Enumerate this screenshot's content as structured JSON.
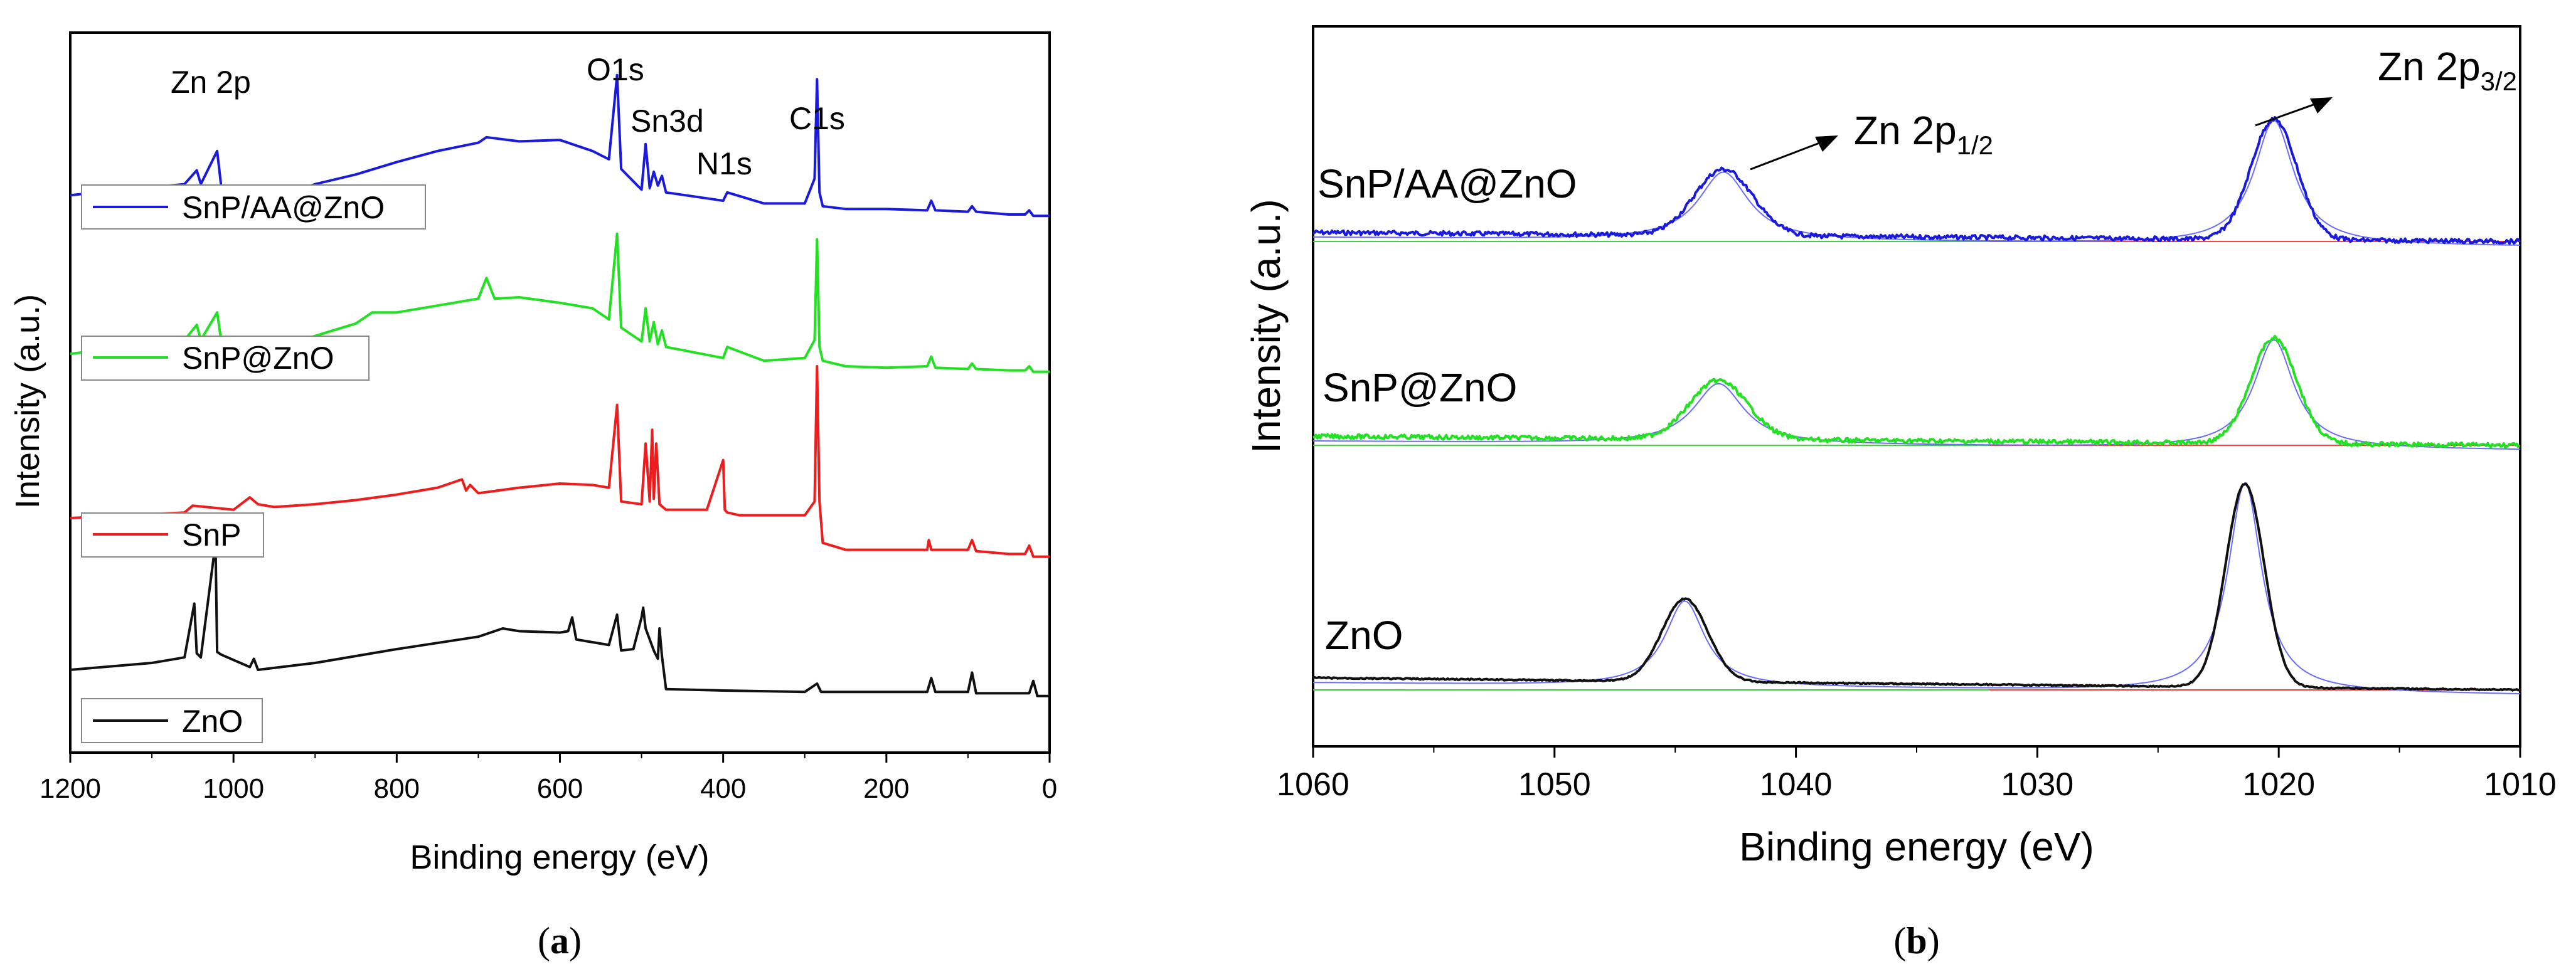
{
  "figure": {
    "panel_a_caption": "(a)",
    "panel_b_caption": "(b)",
    "panel_a_caption_letter": "a",
    "panel_b_caption_letter": "b"
  },
  "colors": {
    "blue": "#1a1adf",
    "green": "#22e022",
    "red": "#ee1c1c",
    "black": "#111111",
    "fit": "#6b6bff",
    "baseline_red": "#ff4040",
    "baseline_green": "#40d040"
  },
  "chart_data": [
    {
      "id": "a",
      "type": "line",
      "title": "",
      "xlabel": "Binding energy (eV)",
      "ylabel": "Intensity (a.u.)",
      "xlim": [
        1200,
        0
      ],
      "x_reversed": true,
      "xticks": [
        1200,
        1000,
        800,
        600,
        400,
        200,
        0
      ],
      "grid": false,
      "legend_entries": [
        "SnP/AA@ZnO",
        "SnP@ZnO",
        "SnP",
        "ZnO"
      ],
      "annotations": [
        "Zn 2p",
        "O1s",
        "Sn3d",
        "N1s",
        "C1s"
      ],
      "series": [
        {
          "name": "SnP/AA@ZnO",
          "color": "blue",
          "offset": 3.0,
          "x": [
            1200,
            1060,
            1045,
            1040,
            1020,
            1015,
            975,
            965,
            900,
            850,
            800,
            750,
            700,
            690,
            650,
            600,
            560,
            540,
            530,
            525,
            500,
            495,
            490,
            485,
            480,
            475,
            470,
            400,
            395,
            350,
            300,
            288,
            285,
            282,
            278,
            250,
            200,
            150,
            145,
            140,
            100,
            95,
            90,
            50,
            30,
            25,
            20,
            0
          ],
          "y": [
            0.08,
            0.16,
            0.26,
            0.16,
            0.4,
            0.14,
            0.08,
            0.03,
            0.16,
            0.23,
            0.32,
            0.4,
            0.46,
            0.5,
            0.47,
            0.48,
            0.4,
            0.34,
            0.95,
            0.27,
            0.12,
            0.45,
            0.13,
            0.25,
            0.15,
            0.22,
            0.1,
            0.04,
            0.1,
            0.02,
            0.02,
            0.2,
            0.92,
            0.1,
            0.0,
            -0.02,
            -0.02,
            -0.03,
            0.04,
            -0.03,
            -0.04,
            0.0,
            -0.04,
            -0.06,
            -0.06,
            -0.03,
            -0.07,
            -0.07
          ]
        },
        {
          "name": "SnP@ZnO",
          "color": "green",
          "offset": 2.0,
          "x": [
            1200,
            1060,
            1045,
            1040,
            1020,
            1015,
            975,
            965,
            900,
            850,
            830,
            800,
            750,
            700,
            690,
            680,
            650,
            600,
            560,
            540,
            530,
            525,
            500,
            495,
            490,
            485,
            480,
            475,
            470,
            400,
            395,
            350,
            300,
            288,
            285,
            282,
            278,
            250,
            200,
            150,
            145,
            140,
            100,
            95,
            90,
            50,
            30,
            25,
            20,
            0
          ],
          "y": [
            0.05,
            0.15,
            0.26,
            0.15,
            0.35,
            0.14,
            0.13,
            0.06,
            0.18,
            0.27,
            0.35,
            0.35,
            0.4,
            0.45,
            0.6,
            0.45,
            0.46,
            0.42,
            0.38,
            0.3,
            0.92,
            0.24,
            0.14,
            0.38,
            0.14,
            0.28,
            0.12,
            0.22,
            0.1,
            0.02,
            0.1,
            0.0,
            0.02,
            0.15,
            0.88,
            0.1,
            0.0,
            -0.04,
            -0.05,
            -0.04,
            0.03,
            -0.05,
            -0.06,
            -0.02,
            -0.06,
            -0.07,
            -0.07,
            -0.04,
            -0.08,
            -0.08
          ]
        },
        {
          "name": "SnP",
          "color": "red",
          "offset": 1.0,
          "x": [
            1200,
            1060,
            1050,
            1000,
            980,
            970,
            950,
            900,
            850,
            800,
            750,
            720,
            715,
            710,
            700,
            650,
            600,
            560,
            540,
            530,
            525,
            500,
            495,
            490,
            487,
            485,
            482,
            478,
            470,
            420,
            400,
            398,
            395,
            380,
            350,
            300,
            288,
            285,
            282,
            278,
            250,
            200,
            150,
            148,
            145,
            140,
            100,
            95,
            90,
            50,
            30,
            25,
            20,
            0
          ],
          "y": [
            -0.02,
            0.02,
            0.07,
            0.04,
            0.13,
            0.08,
            0.06,
            0.08,
            0.11,
            0.15,
            0.2,
            0.26,
            0.18,
            0.22,
            0.16,
            0.2,
            0.23,
            0.22,
            0.2,
            0.8,
            0.1,
            0.08,
            0.52,
            0.1,
            0.62,
            0.12,
            0.52,
            0.08,
            0.04,
            0.04,
            0.4,
            0.04,
            0.02,
            0.0,
            0.0,
            0.0,
            0.1,
            1.08,
            0.1,
            -0.2,
            -0.25,
            -0.25,
            -0.25,
            -0.18,
            -0.25,
            -0.25,
            -0.25,
            -0.18,
            -0.26,
            -0.28,
            -0.28,
            -0.22,
            -0.3,
            -0.3
          ]
        },
        {
          "name": "ZnO",
          "color": "black",
          "offset": 0.0,
          "x": [
            1200,
            1100,
            1060,
            1048,
            1045,
            1040,
            1022,
            1020,
            1015,
            980,
            975,
            970,
            900,
            800,
            700,
            670,
            650,
            600,
            590,
            585,
            580,
            560,
            540,
            530,
            525,
            510,
            500,
            498,
            495,
            485,
            480,
            478,
            475,
            470,
            400,
            300,
            285,
            280,
            200,
            150,
            145,
            140,
            100,
            95,
            90,
            50,
            25,
            20,
            15,
            0
          ],
          "y": [
            0.0,
            0.05,
            0.09,
            0.48,
            0.12,
            0.09,
            0.92,
            0.13,
            0.11,
            0.02,
            0.08,
            0.0,
            0.05,
            0.15,
            0.24,
            0.3,
            0.28,
            0.27,
            0.28,
            0.38,
            0.22,
            0.2,
            0.18,
            0.4,
            0.14,
            0.15,
            0.38,
            0.45,
            0.3,
            0.14,
            0.08,
            0.3,
            0.1,
            -0.14,
            -0.15,
            -0.16,
            -0.1,
            -0.16,
            -0.16,
            -0.16,
            -0.06,
            -0.16,
            -0.16,
            -0.02,
            -0.17,
            -0.17,
            -0.17,
            -0.08,
            -0.19,
            -0.19
          ]
        }
      ]
    },
    {
      "id": "b",
      "type": "line",
      "title": "",
      "xlabel": "Binding energy (eV)",
      "ylabel": "Intensity (a.u.)",
      "xlim": [
        1060,
        1010
      ],
      "x_reversed": true,
      "xticks": [
        1060,
        1050,
        1040,
        1030,
        1020,
        1010
      ],
      "grid": false,
      "series_labels": [
        "SnP/AA@ZnO",
        "SnP@ZnO",
        "ZnO"
      ],
      "annotation_zn2p12": {
        "text": "Zn 2p",
        "subscript": "1/2"
      },
      "annotation_zn2p32": {
        "text": "Zn 2p",
        "subscript": "3/2"
      },
      "series": [
        {
          "name": "SnP/AA@ZnO",
          "color": "blue",
          "base": 0.0,
          "slope": 0.06,
          "peaks": [
            {
              "center": 1043.0,
              "height": 0.88,
              "width": 1.2
            },
            {
              "center": 1020.2,
              "height": 1.6,
              "width": 0.95
            }
          ]
        },
        {
          "name": "SnP@ZnO",
          "color": "green",
          "base": 0.0,
          "slope": 0.06,
          "peaks": [
            {
              "center": 1043.2,
              "height": 0.78,
              "width": 1.2
            },
            {
              "center": 1020.2,
              "height": 1.4,
              "width": 0.95
            }
          ]
        },
        {
          "name": "ZnO",
          "color": "black",
          "base": 0.0,
          "slope": 0.08,
          "peaks": [
            {
              "center": 1044.6,
              "height": 1.1,
              "width": 0.95
            },
            {
              "center": 1021.4,
              "height": 2.7,
              "width": 0.8
            }
          ]
        }
      ]
    }
  ]
}
